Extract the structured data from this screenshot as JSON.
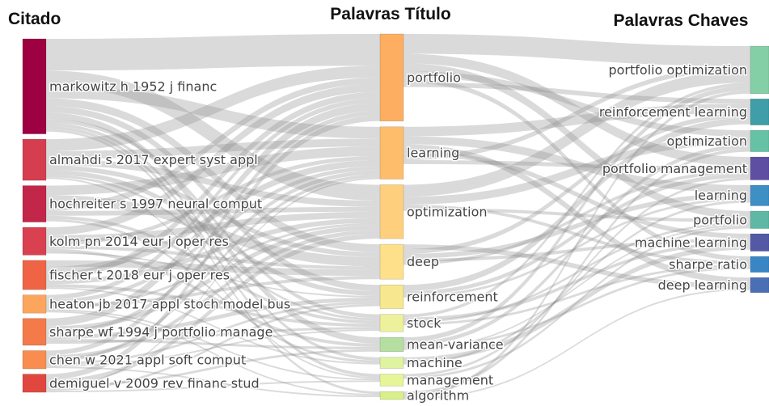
{
  "chart_data": {
    "type": "sankey",
    "columns": [
      {
        "title": "Citado",
        "nodes": [
          {
            "name": "markowitz h 1952 j financ",
            "value": 120,
            "color": "#9e0142"
          },
          {
            "name": "almahdi s 2017 expert syst appl",
            "value": 52,
            "color": "#d53e4f"
          },
          {
            "name": "hochreiter s 1997 neural comput",
            "value": 46,
            "color": "#c2274a"
          },
          {
            "name": "kolm pn 2014 eur j oper res",
            "value": 35,
            "color": "#d94150"
          },
          {
            "name": "fischer t 2018 eur j oper res",
            "value": 37,
            "color": "#ee6445"
          },
          {
            "name": "heaton jb 2017 appl stoch model bus",
            "value": 23,
            "color": "#fca55d"
          },
          {
            "name": "sharpe wf 1994 j portfolio manage",
            "value": 34,
            "color": "#f47a4a"
          },
          {
            "name": "chen w 2021 appl soft comput",
            "value": 23,
            "color": "#f88d4f"
          },
          {
            "name": "demiguel v 2009 rev financ stud",
            "value": 23,
            "color": "#e0483f"
          }
        ]
      },
      {
        "title": "Palavras Título",
        "nodes": [
          {
            "name": "portfolio",
            "value": 110,
            "color": "#fdae61"
          },
          {
            "name": "learning",
            "value": 66,
            "color": "#fdbd6a"
          },
          {
            "name": "optimization",
            "value": 68,
            "color": "#fed07e"
          },
          {
            "name": "deep",
            "value": 44,
            "color": "#fee08b"
          },
          {
            "name": "reinforcement",
            "value": 30,
            "color": "#f7e78f"
          },
          {
            "name": "stock",
            "value": 22,
            "color": "#edf19b"
          },
          {
            "name": "mean-variance",
            "value": 18,
            "color": "#b5dfa0"
          },
          {
            "name": "machine",
            "value": 14,
            "color": "#e0f3a0"
          },
          {
            "name": "management",
            "value": 15,
            "color": "#e6f598"
          },
          {
            "name": "algorithm",
            "value": 10,
            "color": "#d9ef8b"
          }
        ]
      },
      {
        "title": "Palavras Chaves",
        "nodes": [
          {
            "name": "portfolio optimization",
            "value": 60,
            "color": "#84cfa5"
          },
          {
            "name": "reinforcement learning",
            "value": 33,
            "color": "#3f9ea8"
          },
          {
            "name": "optimization",
            "value": 27,
            "color": "#66c2a5"
          },
          {
            "name": "portfolio management",
            "value": 29,
            "color": "#5e4fa2"
          },
          {
            "name": "learning",
            "value": 26,
            "color": "#3d8fc4"
          },
          {
            "name": "portfolio",
            "value": 22,
            "color": "#5fb8a5"
          },
          {
            "name": "machine learning",
            "value": 22,
            "color": "#5459a6"
          },
          {
            "name": "sharpe ratio",
            "value": 20,
            "color": "#3a86c4"
          },
          {
            "name": "deep learning",
            "value": 19,
            "color": "#4a6fb4"
          }
        ]
      }
    ],
    "flows": [
      {
        "links": [
          {
            "from": 0,
            "to": 0,
            "value": 40
          },
          {
            "from": 0,
            "to": 2,
            "value": 20
          },
          {
            "from": 0,
            "to": 1,
            "value": 15
          },
          {
            "from": 0,
            "to": 3,
            "value": 10
          },
          {
            "from": 0,
            "to": 4,
            "value": 8
          },
          {
            "from": 0,
            "to": 6,
            "value": 8
          },
          {
            "from": 0,
            "to": 5,
            "value": 5
          },
          {
            "from": 0,
            "to": 7,
            "value": 4
          },
          {
            "from": 0,
            "to": 8,
            "value": 4
          },
          {
            "from": 0,
            "to": 9,
            "value": 3
          },
          {
            "from": 1,
            "to": 0,
            "value": 15
          },
          {
            "from": 1,
            "to": 1,
            "value": 10
          },
          {
            "from": 1,
            "to": 2,
            "value": 8
          },
          {
            "from": 1,
            "to": 3,
            "value": 6
          },
          {
            "from": 1,
            "to": 4,
            "value": 6
          },
          {
            "from": 1,
            "to": 5,
            "value": 3
          },
          {
            "from": 1,
            "to": 8,
            "value": 2
          },
          {
            "from": 2,
            "to": 1,
            "value": 12
          },
          {
            "from": 2,
            "to": 3,
            "value": 12
          },
          {
            "from": 2,
            "to": 0,
            "value": 8
          },
          {
            "from": 2,
            "to": 2,
            "value": 6
          },
          {
            "from": 2,
            "to": 5,
            "value": 4
          },
          {
            "from": 2,
            "to": 7,
            "value": 3
          },
          {
            "from": 3,
            "to": 0,
            "value": 10
          },
          {
            "from": 3,
            "to": 2,
            "value": 8
          },
          {
            "from": 3,
            "to": 1,
            "value": 5
          },
          {
            "from": 3,
            "to": 3,
            "value": 4
          },
          {
            "from": 3,
            "to": 6,
            "value": 4
          },
          {
            "from": 3,
            "to": 4,
            "value": 2
          },
          {
            "from": 4,
            "to": 3,
            "value": 8
          },
          {
            "from": 4,
            "to": 1,
            "value": 8
          },
          {
            "from": 4,
            "to": 0,
            "value": 8
          },
          {
            "from": 4,
            "to": 2,
            "value": 6
          },
          {
            "from": 4,
            "to": 5,
            "value": 4
          },
          {
            "from": 4,
            "to": 7,
            "value": 2
          },
          {
            "from": 5,
            "to": 0,
            "value": 6
          },
          {
            "from": 5,
            "to": 1,
            "value": 5
          },
          {
            "from": 5,
            "to": 3,
            "value": 4
          },
          {
            "from": 5,
            "to": 2,
            "value": 3
          },
          {
            "from": 5,
            "to": 8,
            "value": 2
          },
          {
            "from": 5,
            "to": 9,
            "value": 2
          },
          {
            "from": 6,
            "to": 0,
            "value": 10
          },
          {
            "from": 6,
            "to": 2,
            "value": 6
          },
          {
            "from": 6,
            "to": 1,
            "value": 5
          },
          {
            "from": 6,
            "to": 4,
            "value": 5
          },
          {
            "from": 6,
            "to": 6,
            "value": 3
          },
          {
            "from": 6,
            "to": 5,
            "value": 3
          },
          {
            "from": 7,
            "to": 0,
            "value": 6
          },
          {
            "from": 7,
            "to": 2,
            "value": 5
          },
          {
            "from": 7,
            "to": 1,
            "value": 4
          },
          {
            "from": 7,
            "to": 4,
            "value": 3
          },
          {
            "from": 7,
            "to": 5,
            "value": 2
          },
          {
            "from": 7,
            "to": 9,
            "value": 2
          },
          {
            "from": 8,
            "to": 0,
            "value": 7
          },
          {
            "from": 8,
            "to": 2,
            "value": 6
          },
          {
            "from": 8,
            "to": 6,
            "value": 3
          },
          {
            "from": 8,
            "to": 1,
            "value": 2
          },
          {
            "from": 8,
            "to": 4,
            "value": 3
          },
          {
            "from": 8,
            "to": 8,
            "value": 2
          }
        ]
      },
      {
        "links": [
          {
            "from": 0,
            "to": 0,
            "value": 25
          },
          {
            "from": 0,
            "to": 3,
            "value": 12
          },
          {
            "from": 0,
            "to": 5,
            "value": 10
          },
          {
            "from": 0,
            "to": 2,
            "value": 8
          },
          {
            "from": 0,
            "to": 7,
            "value": 6
          },
          {
            "from": 0,
            "to": 1,
            "value": 6
          },
          {
            "from": 1,
            "to": 1,
            "value": 12
          },
          {
            "from": 1,
            "to": 4,
            "value": 10
          },
          {
            "from": 1,
            "to": 8,
            "value": 8
          },
          {
            "from": 1,
            "to": 6,
            "value": 6
          },
          {
            "from": 1,
            "to": 0,
            "value": 6
          },
          {
            "from": 1,
            "to": 3,
            "value": 5
          },
          {
            "from": 2,
            "to": 0,
            "value": 15
          },
          {
            "from": 2,
            "to": 2,
            "value": 10
          },
          {
            "from": 2,
            "to": 7,
            "value": 4
          },
          {
            "from": 2,
            "to": 5,
            "value": 4
          },
          {
            "from": 3,
            "to": 8,
            "value": 6
          },
          {
            "from": 3,
            "to": 1,
            "value": 6
          },
          {
            "from": 3,
            "to": 4,
            "value": 6
          },
          {
            "from": 3,
            "to": 6,
            "value": 4
          },
          {
            "from": 3,
            "to": 3,
            "value": 4
          },
          {
            "from": 4,
            "to": 1,
            "value": 8
          },
          {
            "from": 4,
            "to": 3,
            "value": 5
          },
          {
            "from": 4,
            "to": 4,
            "value": 3
          },
          {
            "from": 5,
            "to": 0,
            "value": 4
          },
          {
            "from": 5,
            "to": 6,
            "value": 4
          },
          {
            "from": 5,
            "to": 5,
            "value": 3
          },
          {
            "from": 5,
            "to": 7,
            "value": 3
          },
          {
            "from": 6,
            "to": 0,
            "value": 6
          },
          {
            "from": 6,
            "to": 2,
            "value": 5
          },
          {
            "from": 6,
            "to": 7,
            "value": 3
          },
          {
            "from": 6,
            "to": 5,
            "value": 2
          },
          {
            "from": 7,
            "to": 6,
            "value": 6
          },
          {
            "from": 7,
            "to": 4,
            "value": 3
          },
          {
            "from": 8,
            "to": 3,
            "value": 3
          },
          {
            "from": 8,
            "to": 5,
            "value": 3
          },
          {
            "from": 9,
            "to": 2,
            "value": 4
          },
          {
            "from": 9,
            "to": 0,
            "value": 4
          },
          {
            "from": 9,
            "to": 8,
            "value": 2
          }
        ]
      }
    ]
  }
}
